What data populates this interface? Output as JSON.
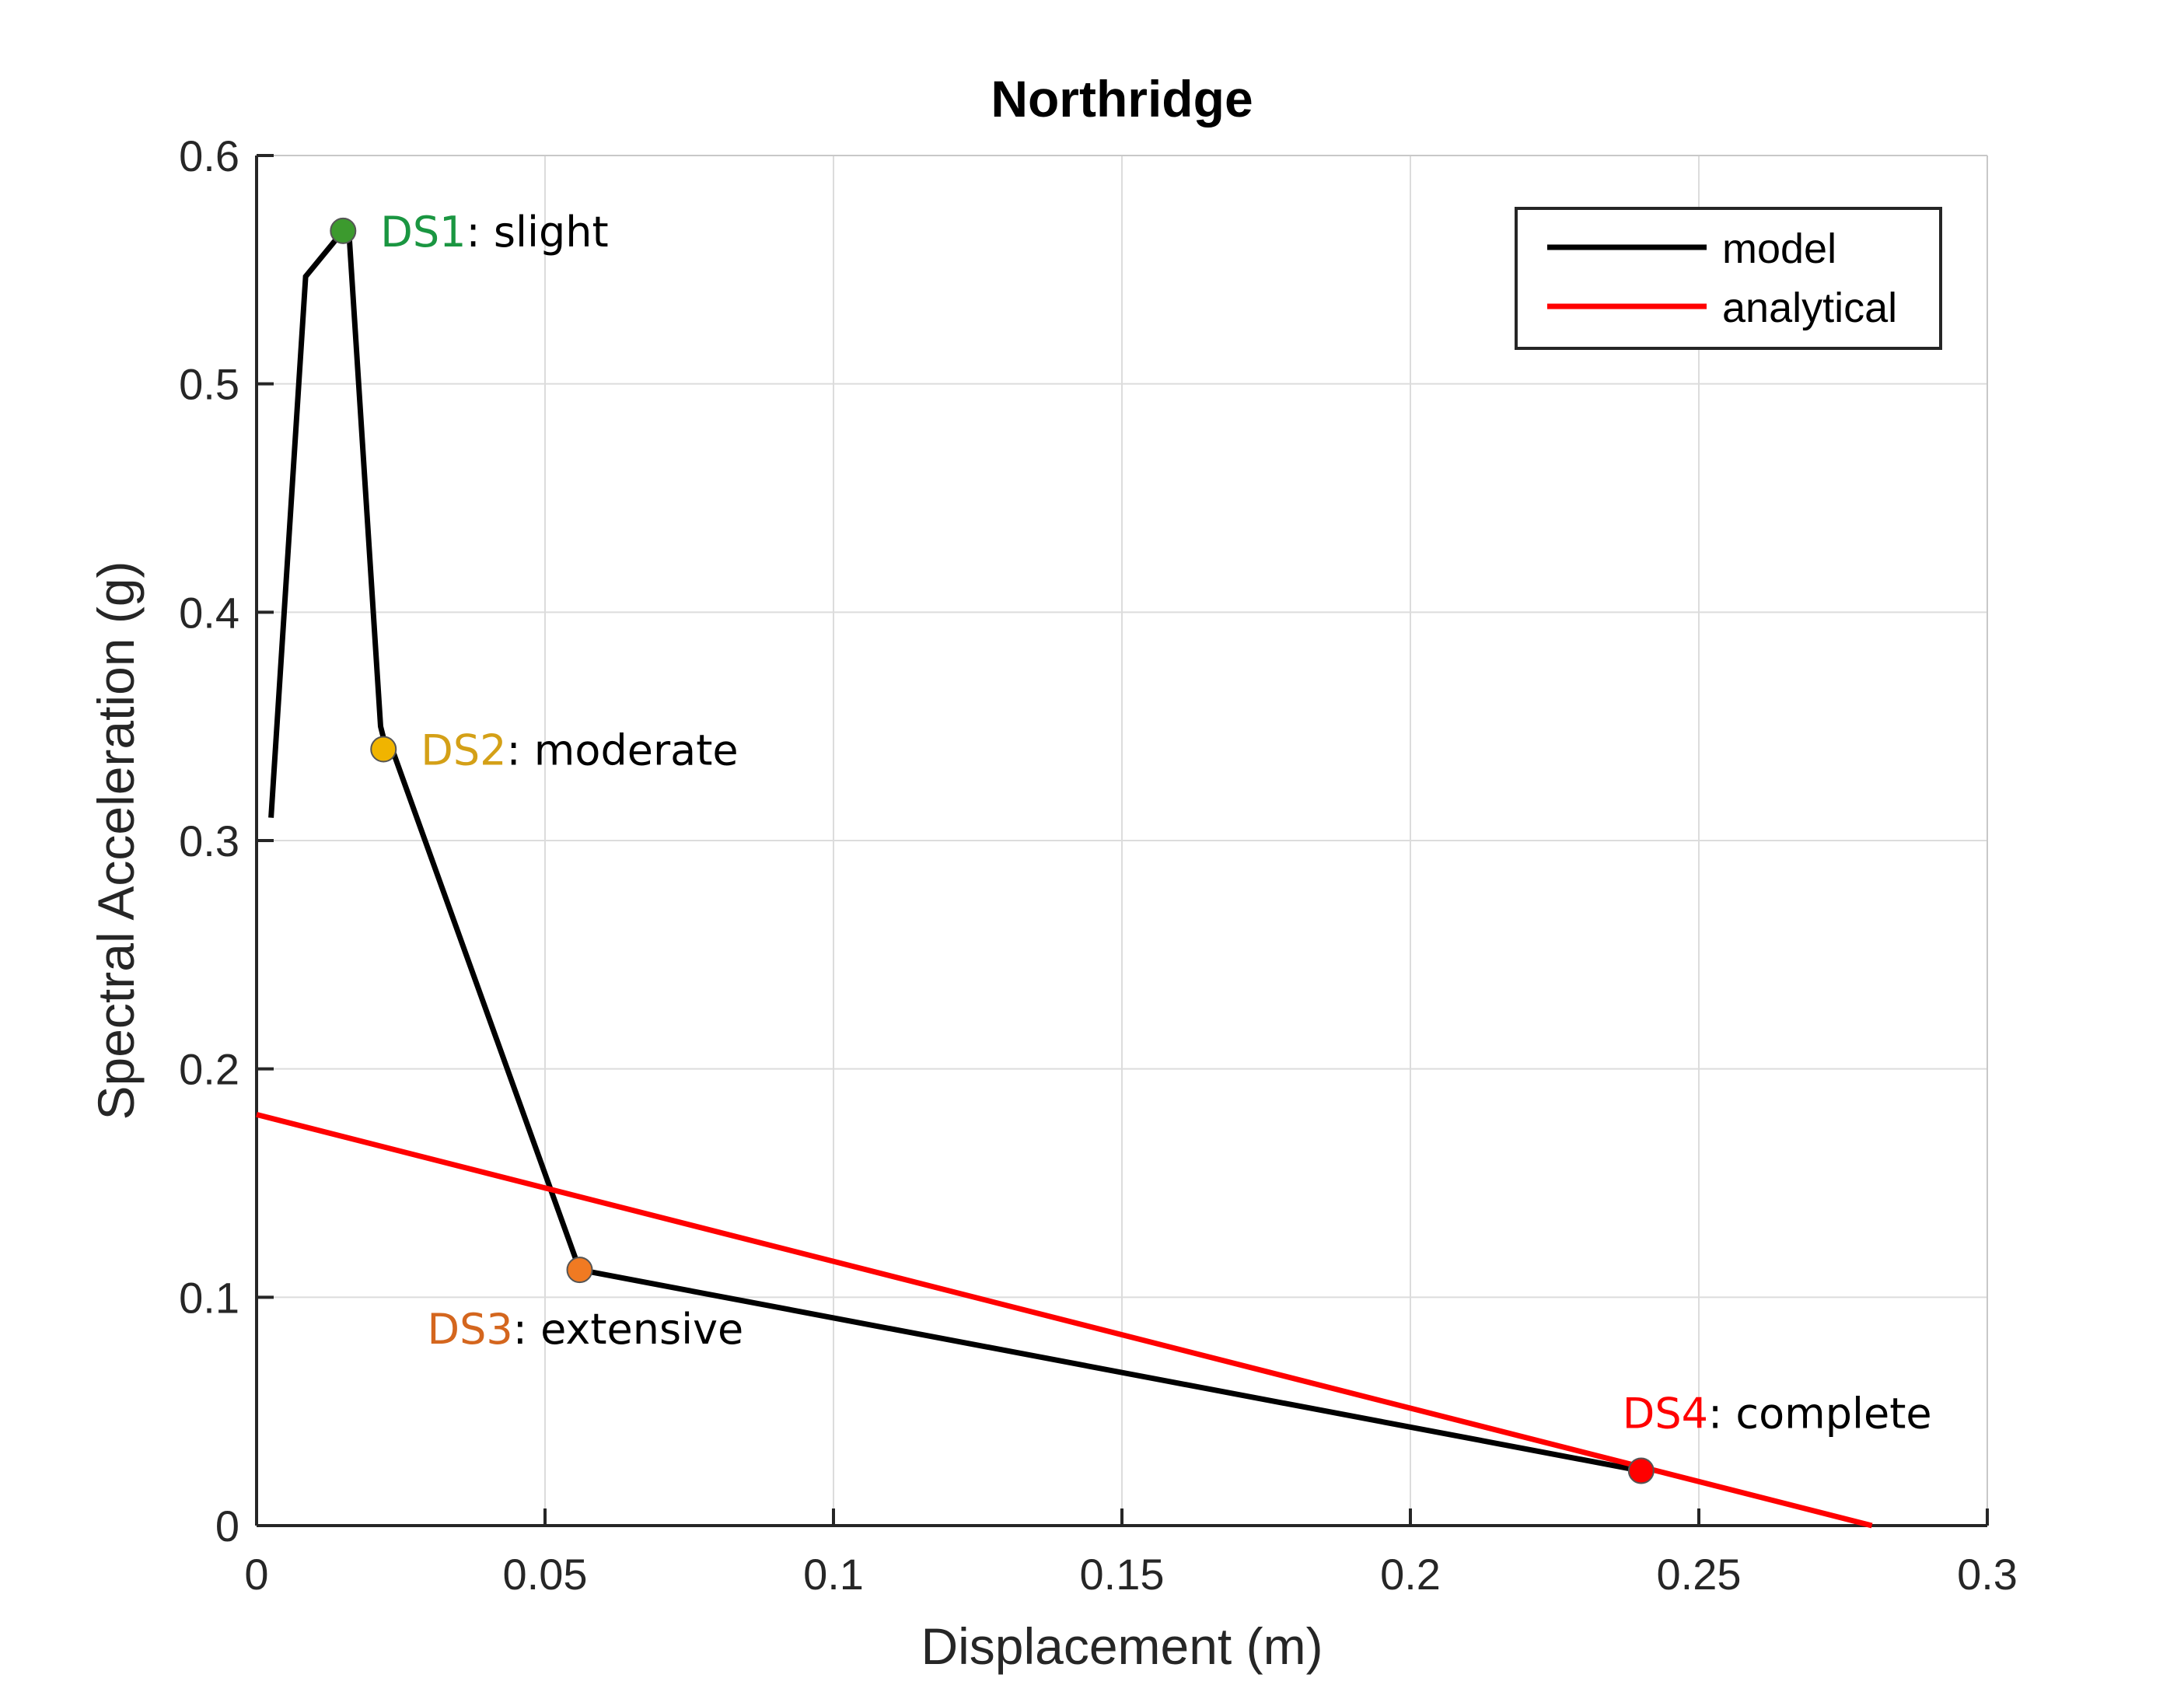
{
  "chart_data": {
    "type": "line",
    "title": "Northridge",
    "xlabel": "Displacement (m)",
    "ylabel": "Spectral Acceleration (g)",
    "xlim": [
      0,
      0.3
    ],
    "ylim": [
      0,
      0.6
    ],
    "xticks": [
      0,
      0.05,
      0.1,
      0.15,
      0.2,
      0.25,
      0.3
    ],
    "xtick_labels": [
      "0",
      "0.05",
      "0.1",
      "0.15",
      "0.2",
      "0.25",
      "0.3"
    ],
    "yticks": [
      0,
      0.1,
      0.2,
      0.3,
      0.4,
      0.5,
      0.6
    ],
    "ytick_labels": [
      "0",
      "0.1",
      "0.2",
      "0.3",
      "0.4",
      "0.5",
      "0.6"
    ],
    "grid": true,
    "legend_position": "top-right",
    "series": [
      {
        "name": "model",
        "color": "#000000",
        "x": [
          0.0025,
          0.0085,
          0.015,
          0.016,
          0.0215,
          0.0225,
          0.0235,
          0.056,
          0.24
        ],
        "y": [
          0.31,
          0.547,
          0.567,
          0.567,
          0.35,
          0.34,
          0.34,
          0.112,
          0.024
        ]
      },
      {
        "name": "analytical",
        "color": "#ff0000",
        "x": [
          0,
          0.28
        ],
        "y": [
          0.18,
          0
        ]
      }
    ],
    "annotations": [
      {
        "id": "ds1",
        "code": "DS1",
        "label": ": slight",
        "x": 0.015,
        "y": 0.567,
        "color": "#1a9641",
        "marker_color": "#3c9a2e",
        "anchor": "right"
      },
      {
        "id": "ds2",
        "code": "DS2",
        "label": ": moderate",
        "x": 0.022,
        "y": 0.34,
        "color": "#d4a017",
        "marker_color": "#f0b400",
        "anchor": "right"
      },
      {
        "id": "ds3",
        "code": "DS3",
        "label": ": extensive",
        "x": 0.056,
        "y": 0.112,
        "color": "#d4661e",
        "marker_color": "#f07a22",
        "anchor": "below"
      },
      {
        "id": "ds4",
        "code": "DS4",
        "label": ": complete",
        "x": 0.24,
        "y": 0.024,
        "color": "#ff0000",
        "marker_color": "#ff0000",
        "anchor": "above"
      }
    ]
  }
}
